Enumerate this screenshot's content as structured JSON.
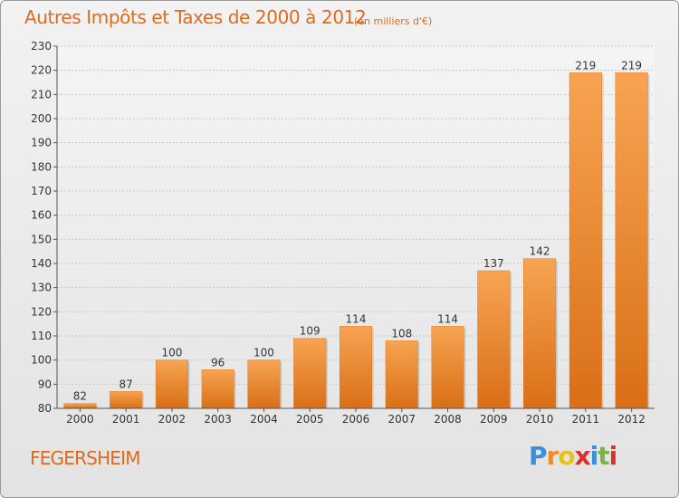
{
  "chart_data": {
    "type": "bar",
    "title": "Autres Impôts et Taxes de 2000 à 2012",
    "subtitle": "(en milliers d'€)",
    "categories": [
      "2000",
      "2001",
      "2002",
      "2003",
      "2004",
      "2005",
      "2006",
      "2007",
      "2008",
      "2009",
      "2010",
      "2011",
      "2012"
    ],
    "values": [
      82,
      87,
      100,
      96,
      100,
      109,
      114,
      108,
      114,
      137,
      142,
      219,
      219
    ],
    "ylim": [
      80,
      230
    ],
    "yticks": [
      80,
      90,
      100,
      110,
      120,
      130,
      140,
      150,
      160,
      170,
      180,
      190,
      200,
      210,
      220,
      230
    ],
    "grid": true,
    "bar_color": "#f08a2c"
  },
  "place": "FEGERSHEIM",
  "logo": {
    "letters": [
      "P",
      "r",
      "o",
      "x",
      "i",
      "t",
      "i"
    ],
    "colors": [
      "#3a8fd8",
      "#f08a2c",
      "#e8c21a",
      "#d9322e",
      "#3a8fd8",
      "#7ab640",
      "#d9322e"
    ]
  }
}
